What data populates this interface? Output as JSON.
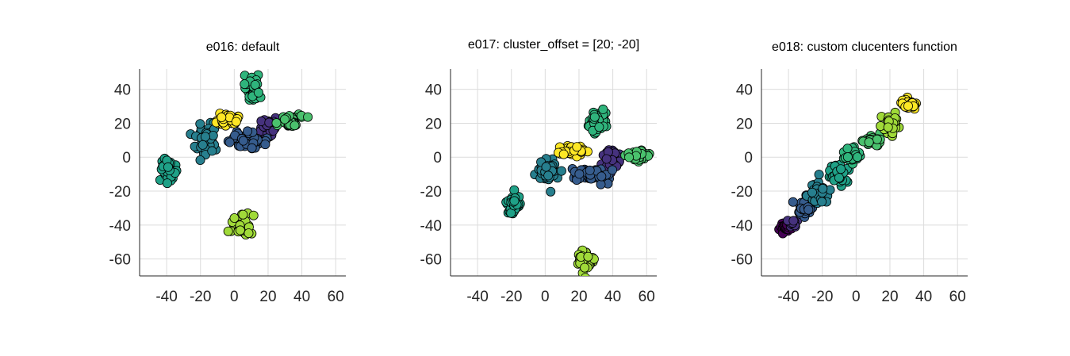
{
  "chart_data": [
    {
      "type": "scatter",
      "title": "e016: default",
      "xlim": [
        -56,
        66
      ],
      "ylim": [
        -70,
        52
      ],
      "xticks": [
        -40,
        -20,
        0,
        20,
        40,
        60
      ],
      "yticks": [
        40,
        20,
        0,
        -20,
        -40,
        -60
      ],
      "grid": true,
      "clusters": [
        {
          "center": [
            20,
            18
          ],
          "color": "#46327e",
          "spread": [
            2.5,
            2.5
          ],
          "n": 40
        },
        {
          "center": [
            8,
            10
          ],
          "color": "#365c8d",
          "spread": [
            5.5,
            2.2
          ],
          "n": 55
        },
        {
          "center": [
            -17,
            10
          ],
          "color": "#277f8e",
          "spread": [
            3.5,
            4.5
          ],
          "n": 45
        },
        {
          "center": [
            -39,
            -8
          ],
          "color": "#1fa187",
          "spread": [
            2.2,
            3.2
          ],
          "n": 45
        },
        {
          "center": [
            11,
            40
          ],
          "color": "#2fb47c",
          "spread": [
            2.5,
            3.5
          ],
          "n": 45
        },
        {
          "center": [
            33,
            21
          ],
          "color": "#4ac16d",
          "spread": [
            3.5,
            1.8
          ],
          "n": 40
        },
        {
          "center": [
            4,
            -40
          ],
          "color": "#a0da39",
          "spread": [
            3.2,
            2.8
          ],
          "n": 45
        },
        {
          "center": [
            -4,
            22
          ],
          "color": "#fde725",
          "spread": [
            3.5,
            1.7
          ],
          "n": 40
        }
      ]
    },
    {
      "type": "scatter",
      "title": "e017: cluster_offset = [20; -20]",
      "xlim": [
        -56,
        66
      ],
      "ylim": [
        -70,
        52
      ],
      "xticks": [
        -40,
        -20,
        0,
        20,
        40,
        60
      ],
      "yticks": [
        40,
        20,
        0,
        -20,
        -40,
        -60
      ],
      "grid": true,
      "clusters": [
        {
          "center": [
            40,
            -2
          ],
          "color": "#46327e",
          "spread": [
            2.2,
            3
          ],
          "n": 40
        },
        {
          "center": [
            28,
            -10
          ],
          "color": "#365c8d",
          "spread": [
            5,
            2
          ],
          "n": 55
        },
        {
          "center": [
            2,
            -8
          ],
          "color": "#277f8e",
          "spread": [
            3.5,
            4
          ],
          "n": 45
        },
        {
          "center": [
            -19,
            -28
          ],
          "color": "#1fa187",
          "spread": [
            2,
            3
          ],
          "n": 45
        },
        {
          "center": [
            31,
            20
          ],
          "color": "#2fb47c",
          "spread": [
            2.5,
            3.5
          ],
          "n": 45
        },
        {
          "center": [
            53,
            1
          ],
          "color": "#4ac16d",
          "spread": [
            3.5,
            1.8
          ],
          "n": 40
        },
        {
          "center": [
            24,
            -60
          ],
          "color": "#a0da39",
          "spread": [
            3,
            2.8
          ],
          "n": 45
        },
        {
          "center": [
            16,
            3
          ],
          "color": "#fde725",
          "spread": [
            4,
            1.6
          ],
          "n": 40
        }
      ]
    },
    {
      "type": "scatter",
      "title": "e018: custom clucenters function",
      "xlim": [
        -56,
        66
      ],
      "ylim": [
        -70,
        52
      ],
      "xticks": [
        -40,
        -20,
        0,
        20,
        40,
        60
      ],
      "yticks": [
        40,
        20,
        0,
        -20,
        -40,
        -60
      ],
      "grid": true,
      "clusters": [
        {
          "center": [
            -41,
            -41
          ],
          "color": "#440154",
          "spread": [
            2,
            1.5
          ],
          "n": 35
        },
        {
          "center": [
            -38,
            -39
          ],
          "color": "#46327e",
          "spread": [
            1.8,
            1.5
          ],
          "n": 20
        },
        {
          "center": [
            -30,
            -29
          ],
          "color": "#365c8d",
          "spread": [
            2.5,
            2.5
          ],
          "n": 45
        },
        {
          "center": [
            -22,
            -21
          ],
          "color": "#277f8e",
          "spread": [
            3,
            3
          ],
          "n": 45
        },
        {
          "center": [
            -11,
            -10
          ],
          "color": "#1fa187",
          "spread": [
            3,
            3
          ],
          "n": 45
        },
        {
          "center": [
            -2,
            1
          ],
          "color": "#2fb47c",
          "spread": [
            2.5,
            2.5
          ],
          "n": 35
        },
        {
          "center": [
            10,
            10
          ],
          "color": "#4ac16d",
          "spread": [
            2.5,
            1.5
          ],
          "n": 30
        },
        {
          "center": [
            20,
            19
          ],
          "color": "#a0da39",
          "spread": [
            2.5,
            3
          ],
          "n": 40
        },
        {
          "center": [
            31,
            31
          ],
          "color": "#fde725",
          "spread": [
            2,
            1.5
          ],
          "n": 35
        }
      ]
    }
  ]
}
